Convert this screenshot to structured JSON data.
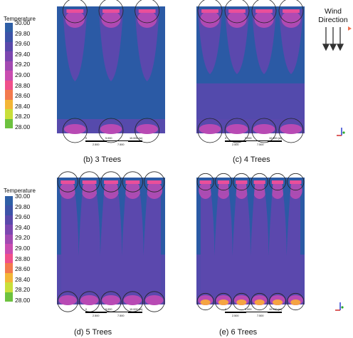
{
  "legend": {
    "title": "Temperature",
    "values": [
      "30.00",
      "29.80",
      "29.60",
      "29.40",
      "29.20",
      "29.00",
      "28.80",
      "28.60",
      "28.40",
      "28.20",
      "28.00"
    ],
    "colors": [
      "#2f5fa6",
      "#3d53a8",
      "#5a49ab",
      "#7c47b0",
      "#a24ab2",
      "#c94db0",
      "#f0508b",
      "#f37a4e",
      "#f3b637",
      "#c9df3a",
      "#6dc23f"
    ]
  },
  "wind": {
    "line1": "Wind",
    "line2": "Direction"
  },
  "panels": [
    {
      "caption": "(b)  3 Trees",
      "trees": 3
    },
    {
      "caption": "(c) 4 Trees",
      "trees": 4
    },
    {
      "caption": "(d) 5 Trees",
      "trees": 5
    },
    {
      "caption": "(e) 6 Trees",
      "trees": 6
    }
  ],
  "scale": {
    "top_left": "0",
    "top_mid": "5.000",
    "top_right": "10.000 (m)",
    "bottom_left": "2.500",
    "bottom_right": "7.500"
  },
  "colors": {
    "blue": "#2b5aa5",
    "purple": "#5b48ad",
    "magenta": "#b84ab4",
    "pink": "#e94f9a",
    "orange": "#f5a442",
    "yellow": "#e8e14a"
  }
}
